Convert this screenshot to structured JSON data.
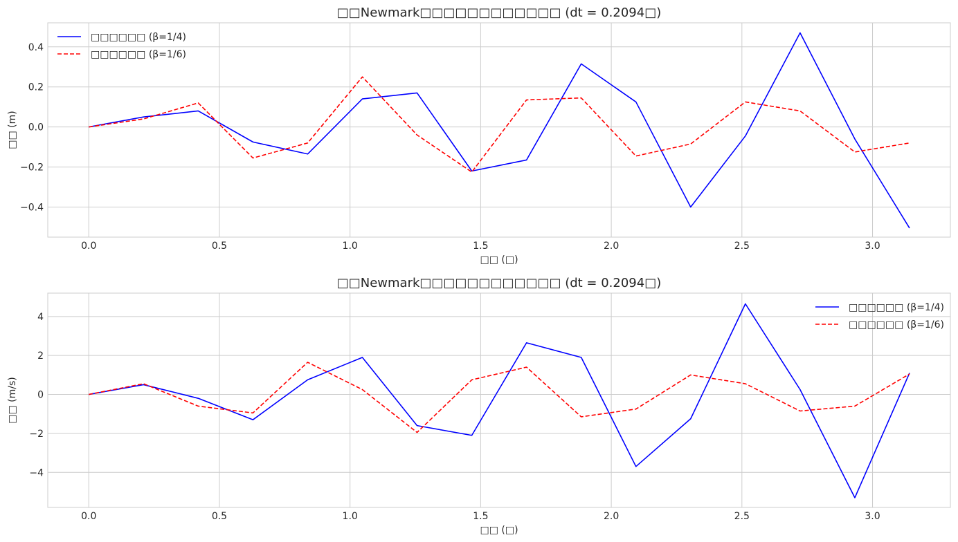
{
  "chart_data": [
    {
      "type": "line",
      "title": "□□Newmark□□□□□□□□□□□□ (dt = 0.2094□)",
      "xlabel": "□□ (□)",
      "ylabel": "□□ (m)",
      "xlim": [
        -0.157,
        3.298
      ],
      "ylim": [
        -0.55,
        0.52
      ],
      "xticks": [
        0.0,
        0.5,
        1.0,
        1.5,
        2.0,
        2.5,
        3.0
      ],
      "xtick_labels": [
        "0.0",
        "0.5",
        "1.0",
        "1.5",
        "2.0",
        "2.5",
        "3.0"
      ],
      "yticks": [
        -0.4,
        -0.2,
        0.0,
        0.2,
        0.4
      ],
      "ytick_labels": [
        "−0.4",
        "−0.2",
        "0.0",
        "0.2",
        "0.4"
      ],
      "grid": true,
      "legend": "upper left",
      "x": [
        0.0,
        0.2094,
        0.4189,
        0.6283,
        0.8378,
        1.0472,
        1.2566,
        1.4661,
        1.6755,
        1.885,
        2.0944,
        2.3038,
        2.5133,
        2.7227,
        2.9322,
        3.1416
      ],
      "series": [
        {
          "name": "□□□□□□ (β=1/4)",
          "color": "#0000ff",
          "dash": "solid",
          "values": [
            0.0,
            0.05,
            0.08,
            -0.075,
            -0.135,
            0.14,
            0.17,
            -0.22,
            -0.165,
            0.315,
            0.125,
            -0.4,
            -0.045,
            0.47,
            -0.06,
            -0.505
          ]
        },
        {
          "name": "□□□□□□ (β=1/6)",
          "color": "#ff0000",
          "dash": "dashed",
          "values": [
            0.0,
            0.04,
            0.12,
            -0.155,
            -0.08,
            0.25,
            -0.04,
            -0.225,
            0.135,
            0.145,
            -0.145,
            -0.085,
            0.125,
            0.08,
            -0.125,
            -0.08
          ]
        }
      ]
    },
    {
      "type": "line",
      "title": "□□Newmark□□□□□□□□□□□□ (dt = 0.2094□)",
      "xlabel": "□□ (□)",
      "ylabel": "□□ (m/s)",
      "xlim": [
        -0.157,
        3.298
      ],
      "ylim": [
        -5.8,
        5.2
      ],
      "xticks": [
        0.0,
        0.5,
        1.0,
        1.5,
        2.0,
        2.5,
        3.0
      ],
      "xtick_labels": [
        "0.0",
        "0.5",
        "1.0",
        "1.5",
        "2.0",
        "2.5",
        "3.0"
      ],
      "yticks": [
        -4,
        -2,
        0,
        2,
        4
      ],
      "ytick_labels": [
        "−4",
        "−2",
        "0",
        "2",
        "4"
      ],
      "grid": true,
      "legend": "upper right",
      "x": [
        0.0,
        0.2094,
        0.4189,
        0.6283,
        0.8378,
        1.0472,
        1.2566,
        1.4661,
        1.6755,
        1.885,
        2.0944,
        2.3038,
        2.5133,
        2.7227,
        2.9322,
        3.1416
      ],
      "series": [
        {
          "name": "□□□□□□ (β=1/4)",
          "color": "#0000ff",
          "dash": "solid",
          "values": [
            0.0,
            0.5,
            -0.2,
            -1.3,
            0.75,
            1.9,
            -1.6,
            -2.1,
            2.65,
            1.9,
            -3.7,
            -1.25,
            4.65,
            0.25,
            -5.3,
            1.1
          ]
        },
        {
          "name": "□□□□□□ (β=1/6)",
          "color": "#ff0000",
          "dash": "dashed",
          "values": [
            0.0,
            0.55,
            -0.6,
            -0.95,
            1.65,
            0.25,
            -1.95,
            0.75,
            1.4,
            -1.15,
            -0.75,
            1.0,
            0.55,
            -0.85,
            -0.6,
            1.05
          ]
        }
      ]
    }
  ]
}
